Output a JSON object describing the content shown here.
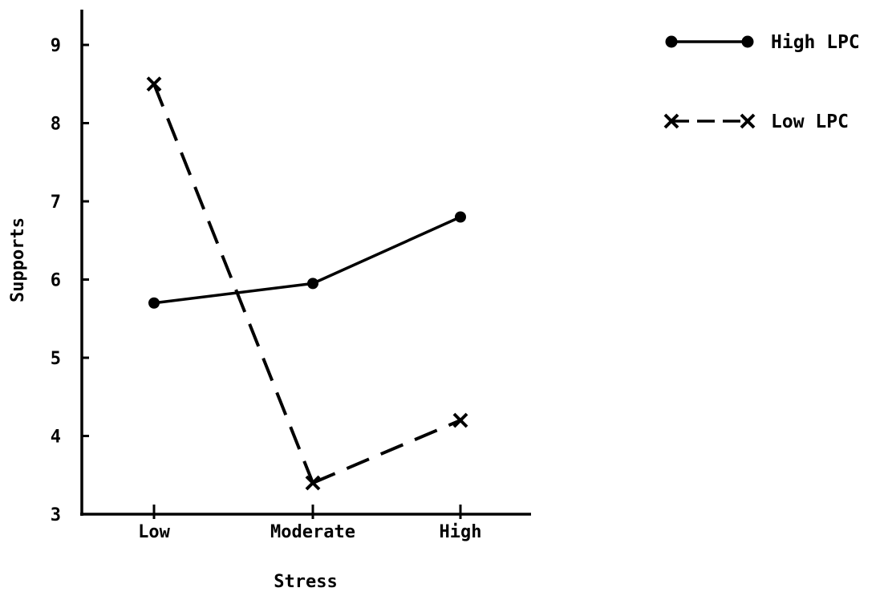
{
  "chart_data": {
    "type": "line",
    "title": "",
    "xlabel": "Stress",
    "ylabel": "Supports",
    "categories": [
      "Low",
      "Moderate",
      "High"
    ],
    "ylim": [
      3,
      9
    ],
    "yticks": [
      3,
      4,
      5,
      6,
      7,
      8,
      9
    ],
    "grid": false,
    "legend_position": "top-right",
    "series": [
      {
        "name": "High LPC",
        "values": [
          5.7,
          5.95,
          6.8
        ],
        "line_style": "solid",
        "marker": "circle",
        "color": "#000000"
      },
      {
        "name": "Low LPC",
        "values": [
          8.5,
          3.4,
          4.2
        ],
        "line_style": "dashed",
        "marker": "x",
        "color": "#000000"
      }
    ]
  }
}
